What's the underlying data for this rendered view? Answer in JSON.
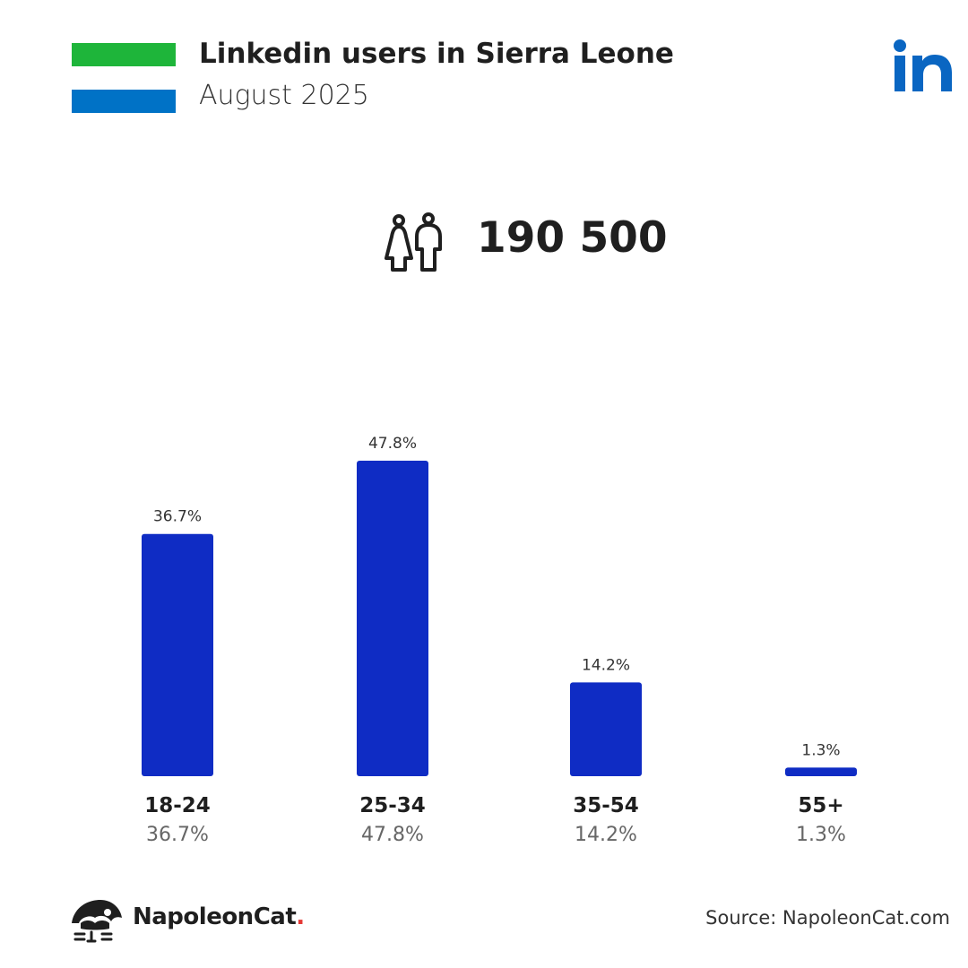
{
  "header": {
    "title": "Linkedin users in Sierra Leone",
    "subtitle": "August 2025"
  },
  "flag": {
    "colors": [
      "#1EB53A",
      "#FFFFFF",
      "#0072C6"
    ]
  },
  "logo_icon": "linkedin-icon",
  "summary": {
    "icon": "people-icon",
    "total": "190 500"
  },
  "chart_data": {
    "type": "bar",
    "categories": [
      "18-24",
      "25-34",
      "35-54",
      "55+"
    ],
    "values": [
      36.7,
      47.8,
      14.2,
      1.3
    ],
    "value_labels": [
      "36.7%",
      "47.8%",
      "14.2%",
      "1.3%"
    ],
    "unit": "%",
    "bar_color": "#0F2CC4",
    "ylim": [
      0,
      47.8
    ],
    "grid": false,
    "legend": "none"
  },
  "footer": {
    "brand": "NapoleonCat",
    "brand_dot": ".",
    "brand_icon": "napoleoncat-logo-icon",
    "source": "Source: NapoleonCat.com"
  }
}
